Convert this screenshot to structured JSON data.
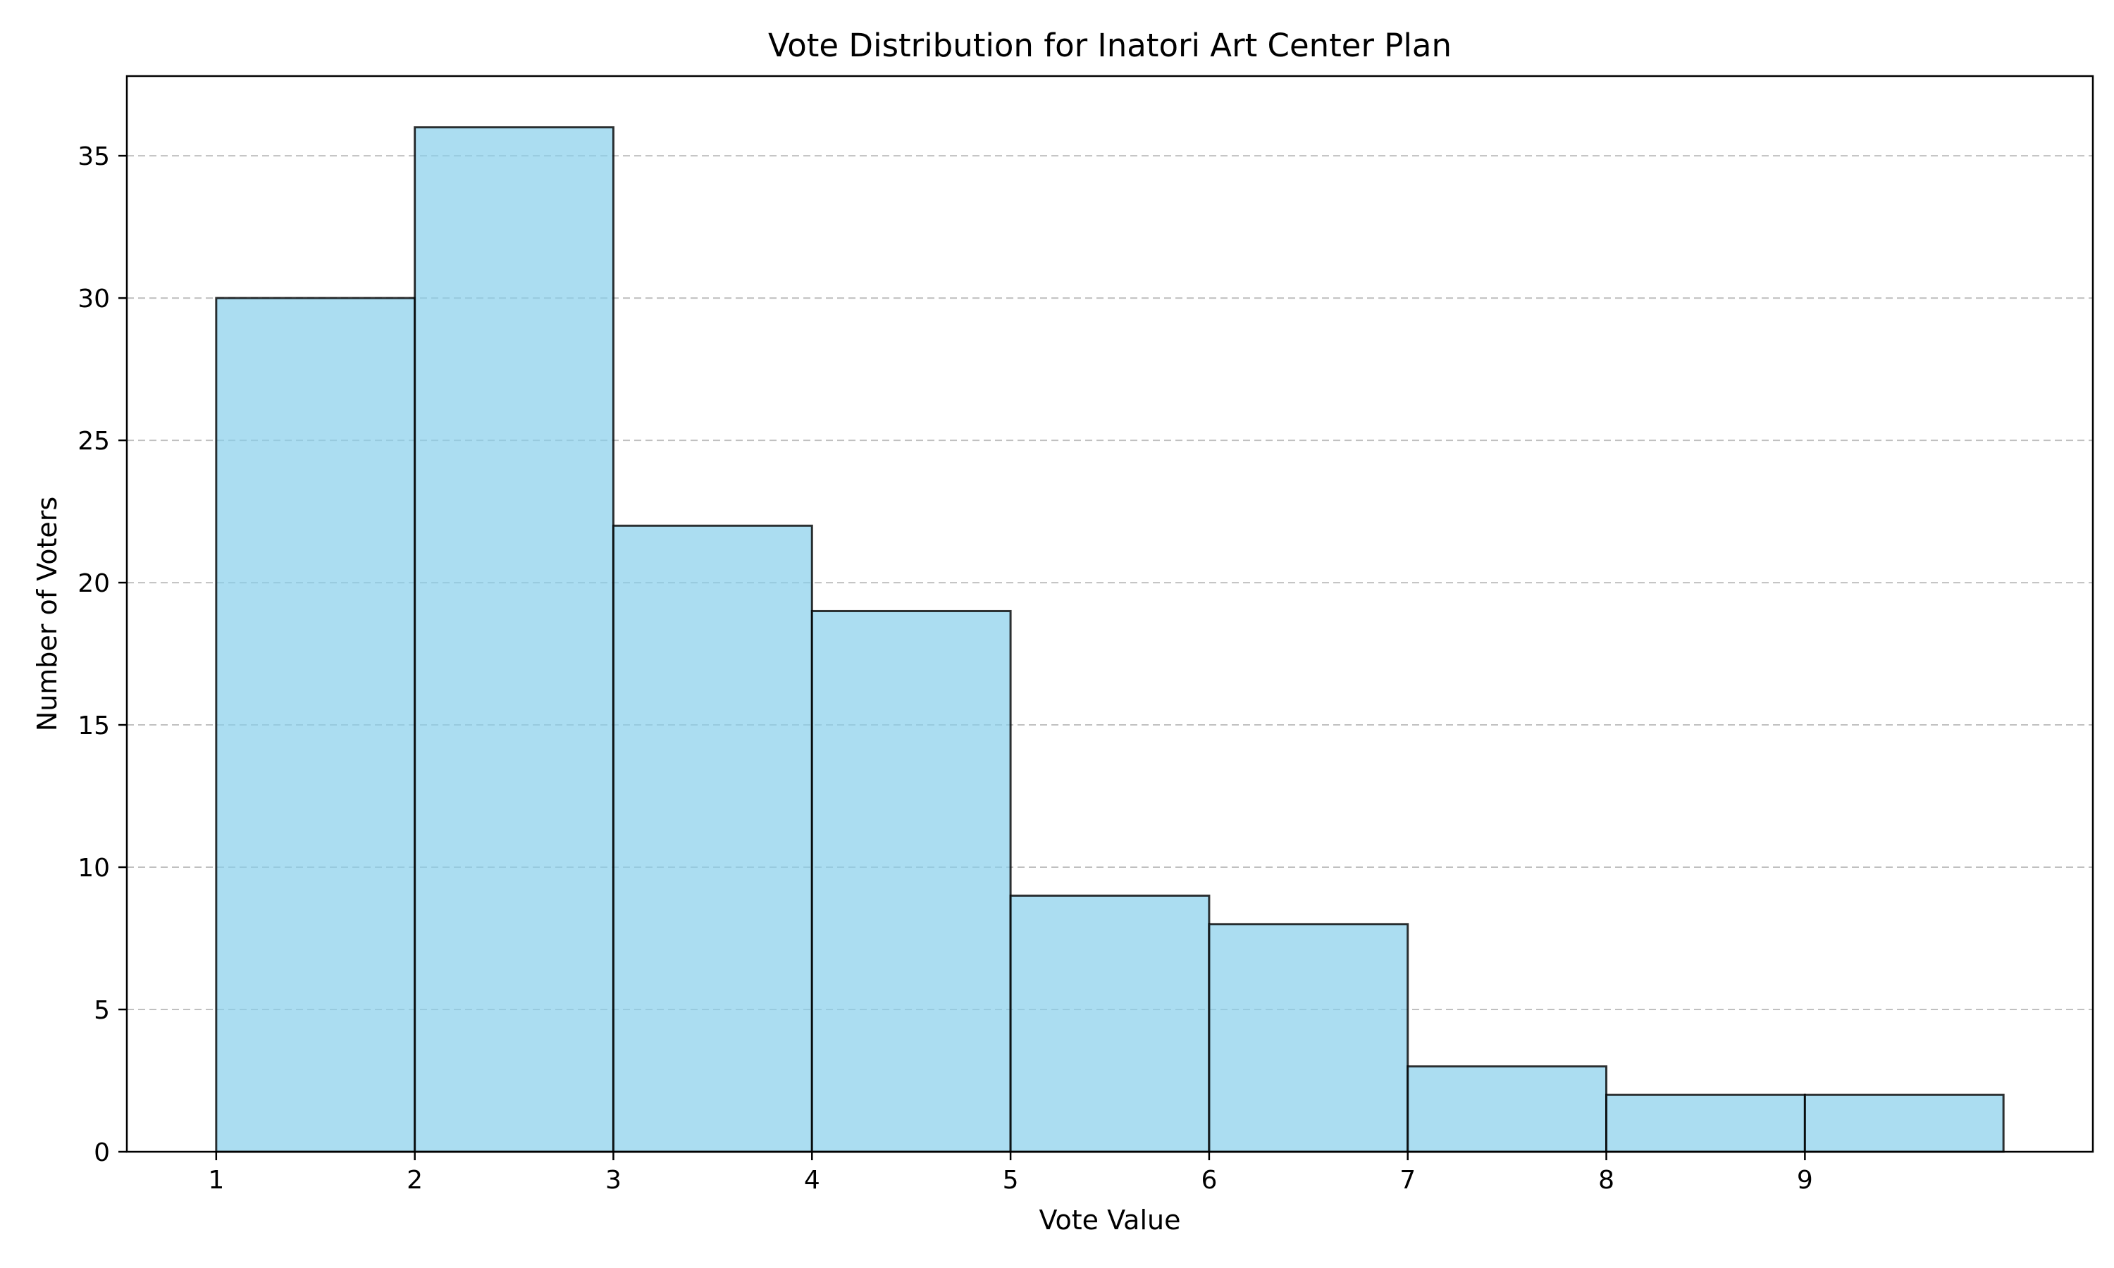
{
  "chart_data": {
    "type": "bar",
    "histogram": true,
    "title": "Vote Distribution for Inatori Art Center Plan",
    "xlabel": "Vote Value",
    "ylabel": "Number of Voters",
    "bins": [
      {
        "x0": 1,
        "x1": 2,
        "count": 30
      },
      {
        "x0": 2,
        "x1": 3,
        "count": 36
      },
      {
        "x0": 3,
        "x1": 4,
        "count": 22
      },
      {
        "x0": 4,
        "x1": 5,
        "count": 19
      },
      {
        "x0": 5,
        "x1": 6,
        "count": 9
      },
      {
        "x0": 6,
        "x1": 7,
        "count": 8
      },
      {
        "x0": 7,
        "x1": 8,
        "count": 3
      },
      {
        "x0": 8,
        "x1": 9,
        "count": 2
      },
      {
        "x0": 9,
        "x1": 10,
        "count": 2
      }
    ],
    "xlim": [
      0.55,
      10.45
    ],
    "ylim": [
      0,
      37.8
    ],
    "xticks": [
      1,
      2,
      3,
      4,
      5,
      6,
      7,
      8,
      9
    ],
    "yticks": [
      0,
      5,
      10,
      15,
      20,
      25,
      30,
      35
    ],
    "grid": {
      "axis": "y",
      "style": "dashed"
    },
    "colors": {
      "bar_fill": "#87ceeb",
      "bar_edge": "#000000",
      "grid": "#b0b0b0"
    }
  }
}
